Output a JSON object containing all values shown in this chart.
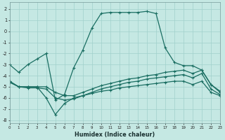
{
  "xlabel": "Humidex (Indice chaleur)",
  "background_color": "#c5e8e3",
  "grid_color": "#a0d0cc",
  "line_color": "#1a6e62",
  "xlim": [
    0,
    23
  ],
  "ylim": [
    -8.3,
    2.6
  ],
  "line1_x": [
    0,
    1,
    2,
    3,
    4,
    5,
    6,
    7,
    8,
    9,
    10,
    11,
    12,
    13,
    14,
    15,
    16,
    17,
    18,
    19,
    20,
    21,
    22,
    23
  ],
  "line1_y": [
    -3.0,
    -3.7,
    -3.0,
    -2.5,
    -2.0,
    -6.2,
    -5.7,
    -3.3,
    -1.7,
    0.3,
    1.6,
    1.7,
    1.7,
    1.7,
    1.7,
    1.8,
    1.6,
    -1.5,
    -2.8,
    -3.1,
    -3.1,
    -3.5,
    -4.8,
    -5.4
  ],
  "line2_x": [
    0,
    1,
    2,
    3,
    4,
    5,
    6,
    7,
    8,
    9,
    10,
    11,
    12,
    13,
    14,
    15,
    16,
    17,
    18,
    19,
    20,
    21,
    22,
    23
  ],
  "line2_y": [
    -4.5,
    -5.0,
    -5.0,
    -5.0,
    -5.0,
    -5.5,
    -5.8,
    -5.8,
    -5.5,
    -5.2,
    -4.9,
    -4.7,
    -4.5,
    -4.3,
    -4.2,
    -4.0,
    -3.9,
    -3.7,
    -3.6,
    -3.5,
    -3.8,
    -3.5,
    -4.8,
    -5.5
  ],
  "line3_x": [
    0,
    1,
    2,
    3,
    4,
    5,
    6,
    7,
    8,
    9,
    10,
    11,
    12,
    13,
    14,
    15,
    16,
    17,
    18,
    19,
    20,
    21,
    22,
    23
  ],
  "line3_y": [
    -4.6,
    -5.0,
    -5.1,
    -5.1,
    -5.2,
    -6.0,
    -6.2,
    -6.1,
    -5.8,
    -5.5,
    -5.2,
    -5.0,
    -4.8,
    -4.6,
    -4.5,
    -4.3,
    -4.2,
    -4.1,
    -4.0,
    -3.9,
    -4.2,
    -3.8,
    -5.2,
    -5.7
  ],
  "line4_x": [
    0,
    1,
    2,
    3,
    4,
    5,
    6,
    7,
    8,
    9,
    10,
    11,
    12,
    13,
    14,
    15,
    16,
    17,
    18,
    19,
    20,
    21,
    22,
    23
  ],
  "line4_y": [
    -4.5,
    -5.0,
    -5.0,
    -5.0,
    -6.0,
    -7.5,
    -6.5,
    -6.0,
    -5.8,
    -5.6,
    -5.4,
    -5.3,
    -5.1,
    -5.0,
    -4.9,
    -4.8,
    -4.7,
    -4.6,
    -4.5,
    -4.5,
    -4.8,
    -4.5,
    -5.5,
    -5.8
  ],
  "ytick_values": [
    -8,
    -7,
    -6,
    -5,
    -4,
    -3,
    -2,
    -1,
    0,
    1,
    2
  ],
  "xtick_values": [
    0,
    1,
    2,
    3,
    4,
    5,
    6,
    7,
    8,
    9,
    10,
    11,
    12,
    13,
    14,
    15,
    16,
    17,
    18,
    19,
    20,
    21,
    22,
    23
  ]
}
